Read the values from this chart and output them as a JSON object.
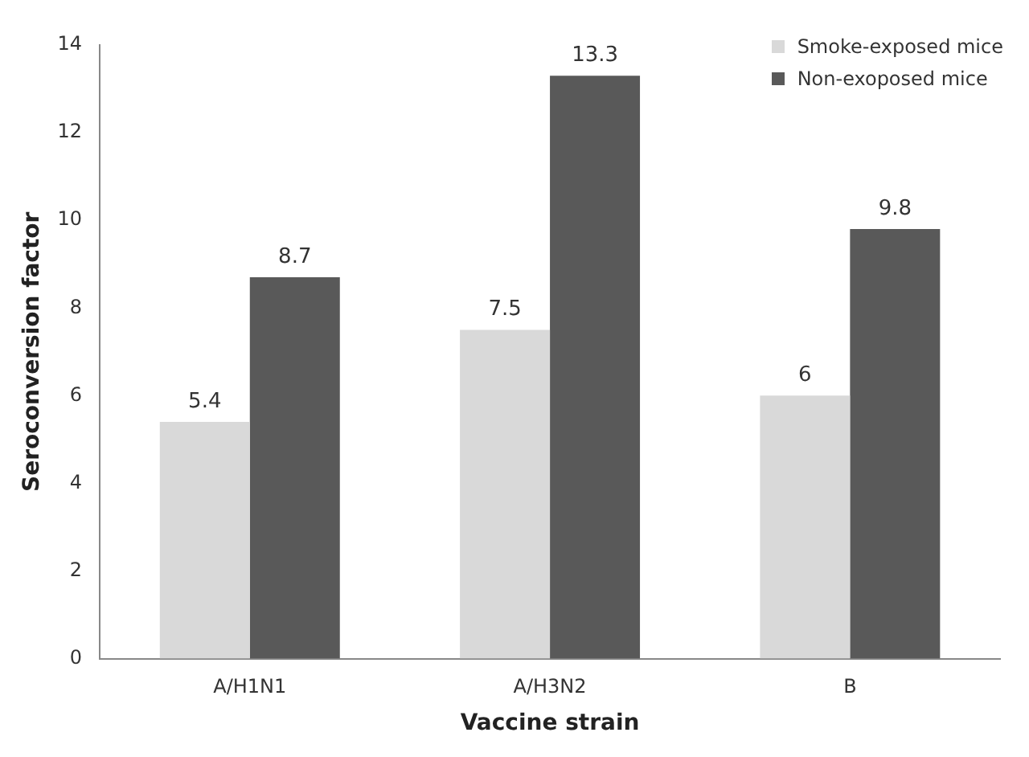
{
  "chart_data": {
    "type": "bar",
    "xlabel": "Vaccine strain",
    "ylabel": "Seroconversion factor",
    "categories": [
      "A/H1N1",
      "A/H3N2",
      "B"
    ],
    "series": [
      {
        "name": "Smoke-exposed mice",
        "color": "#d9d9d9",
        "values": [
          5.4,
          7.5,
          6
        ]
      },
      {
        "name": "Non-exoposed mice",
        "color": "#595959",
        "values": [
          8.7,
          13.3,
          9.8
        ]
      }
    ],
    "ylim": [
      0,
      14
    ],
    "yticks": [
      0,
      2,
      4,
      6,
      8,
      10,
      12,
      14
    ],
    "grid": false,
    "legend": "top right",
    "data_labels": true
  }
}
